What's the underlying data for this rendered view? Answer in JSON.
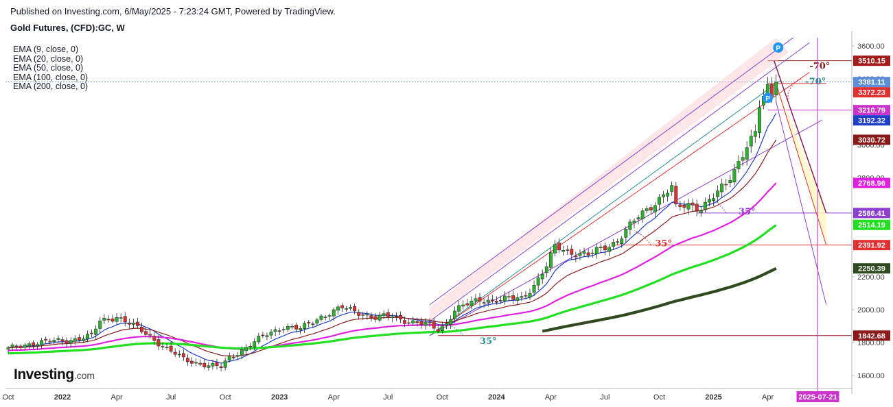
{
  "header": {
    "published": "Published on Investing.com, 6/May/2025 - 7:23:24 GMT, Powered by TradingView.",
    "symbol": "Gold Futures, (CFD):GC, W"
  },
  "legend": {
    "ema": [
      "EMA (9, close, 0)",
      "EMA (20, close, 0)",
      "EMA (50, close, 0)",
      "EMA (100, close, 0)",
      "EMA (200, close, 0)"
    ]
  },
  "logo": {
    "brand": "Investing",
    "suffix": ".com"
  },
  "chart_data": {
    "type": "candlestick",
    "title": "Gold Futures, (CFD):GC, W",
    "ylim": [
      1530,
      3650
    ],
    "y_ticks": [
      "3600.00",
      "3400.00",
      "3000.00",
      "2800.00",
      "2200.00",
      "2000.00",
      "1800.00",
      "1600.00"
    ],
    "y_tick_values": [
      3600,
      3400,
      3000,
      2800,
      2200,
      2000,
      1800,
      1600
    ],
    "x_labels": [
      "Oct",
      "2022",
      "Apr",
      "Jul",
      "Oct",
      "2023",
      "Apr",
      "Jul",
      "Oct",
      "2024",
      "Apr",
      "Jul",
      "Oct",
      "2025",
      "Apr"
    ],
    "x_label_weeks": [
      0,
      13,
      26,
      39,
      52,
      65,
      78,
      91,
      104,
      117,
      130,
      143,
      156,
      169,
      182
    ],
    "date_marker": {
      "label": "2025-07-21",
      "week": 194,
      "color": "#cc33cc"
    },
    "price_badges": [
      {
        "label": "3510.15",
        "value": 3510.15,
        "color": "#a51a1a"
      },
      {
        "label": "3381.11",
        "value": 3381.11,
        "color": "#5b8dd9"
      },
      {
        "label": "3372.23",
        "value": 3372.23,
        "color": "#e03030"
      },
      {
        "label": "3210.79",
        "value": 3210.79,
        "color": "#cc33cc"
      },
      {
        "label": "3192.32",
        "value": 3192.32,
        "color": "#1e3fc8"
      },
      {
        "label": "3030.72",
        "value": 3030.72,
        "color": "#8b1a1a"
      },
      {
        "label": "2768.96",
        "value": 2768.96,
        "color": "#e020e0"
      },
      {
        "label": "2586.41",
        "value": 2586.41,
        "color": "#8c3fd0"
      },
      {
        "label": "2514.19",
        "value": 2514.19,
        "color": "#20e020"
      },
      {
        "label": "2391.92",
        "value": 2391.92,
        "color": "#e03030"
      },
      {
        "label": "2250.39",
        "value": 2250.39,
        "color": "#2e4a1e"
      },
      {
        "label": "1842.68",
        "value": 1842.68,
        "color": "#8b1a1a"
      }
    ],
    "series": [
      {
        "name": "Close (weekly)",
        "color": "#26a69a",
        "anchors": [
          [
            0,
            1760
          ],
          [
            6,
            1800
          ],
          [
            13,
            1810
          ],
          [
            20,
            1840
          ],
          [
            22,
            1930
          ],
          [
            26,
            1960
          ],
          [
            30,
            1900
          ],
          [
            34,
            1840
          ],
          [
            38,
            1760
          ],
          [
            42,
            1700
          ],
          [
            48,
            1660
          ],
          [
            51,
            1650
          ],
          [
            53,
            1710
          ],
          [
            57,
            1770
          ],
          [
            62,
            1850
          ],
          [
            66,
            1900
          ],
          [
            70,
            1880
          ],
          [
            75,
            1960
          ],
          [
            80,
            2010
          ],
          [
            84,
            1985
          ],
          [
            88,
            1950
          ],
          [
            92,
            1960
          ],
          [
            96,
            1930
          ],
          [
            100,
            1910
          ],
          [
            103,
            1880
          ],
          [
            105,
            1920
          ],
          [
            107,
            2000
          ],
          [
            110,
            2030
          ],
          [
            113,
            2060
          ],
          [
            118,
            2060
          ],
          [
            123,
            2070
          ],
          [
            126,
            2150
          ],
          [
            129,
            2260
          ],
          [
            131,
            2380
          ],
          [
            135,
            2350
          ],
          [
            139,
            2330
          ],
          [
            143,
            2380
          ],
          [
            146,
            2420
          ],
          [
            148,
            2480
          ],
          [
            151,
            2560
          ],
          [
            154,
            2630
          ],
          [
            157,
            2700
          ],
          [
            159,
            2740
          ],
          [
            160,
            2610
          ],
          [
            163,
            2640
          ],
          [
            166,
            2620
          ],
          [
            169,
            2680
          ],
          [
            172,
            2760
          ],
          [
            175,
            2900
          ],
          [
            177,
            3000
          ],
          [
            179,
            3060
          ],
          [
            180,
            3230
          ],
          [
            182,
            3340
          ],
          [
            183,
            3300
          ],
          [
            184,
            3380
          ]
        ]
      },
      {
        "name": "EMA (9, close, 0)",
        "color": "#1e3fc8",
        "value": 3192.32
      },
      {
        "name": "EMA (20, close, 0)",
        "color": "#8b1a1a",
        "value": 3030.72
      },
      {
        "name": "EMA (50, close, 0)",
        "color": "#e020e0",
        "value": 2768.96
      },
      {
        "name": "EMA (100, close, 0)",
        "color": "#20e020",
        "value": 2514.19
      },
      {
        "name": "EMA (200, close, 0)",
        "color": "#2e4a1e",
        "value": 2250.39
      }
    ],
    "annotations": [
      {
        "text": "35°",
        "color": "#2a8f8f"
      },
      {
        "text": "35°",
        "color": "#e03030"
      },
      {
        "text": "35°",
        "color": "#8c3fd0"
      },
      {
        "text": "-70°",
        "color": "#8b1a1a"
      },
      {
        "text": "-70°",
        "color": "#2a8f8f"
      },
      {
        "text": "P",
        "color": "#2196f3"
      },
      {
        "text": "P",
        "color": "#2196f3"
      }
    ],
    "levels": {
      "ath": 3510.15,
      "last": 3381.11,
      "low_2023": 1842.68
    }
  }
}
